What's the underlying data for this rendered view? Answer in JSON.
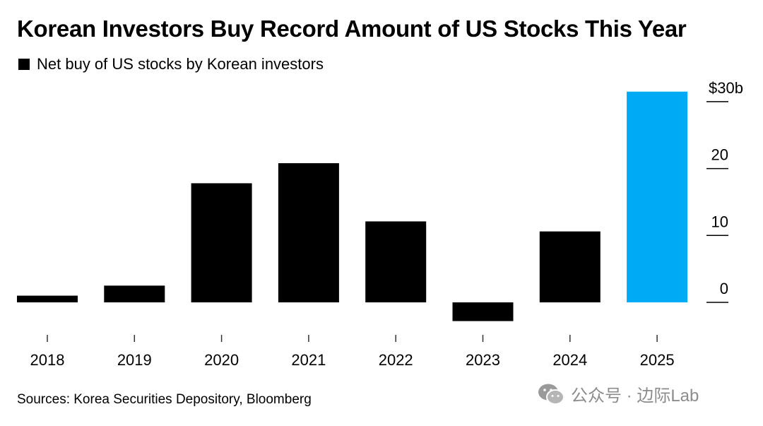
{
  "chart_data": {
    "type": "bar",
    "title": "Korean Investors Buy Record Amount of US Stocks This Year",
    "legend": {
      "label": "Net buy of US stocks by Korean investors",
      "color": "#000000",
      "placement": "top-left"
    },
    "categories": [
      "2018",
      "2019",
      "2020",
      "2021",
      "2022",
      "2023",
      "2024",
      "2025"
    ],
    "values": [
      1.0,
      2.5,
      17.8,
      20.8,
      12.1,
      -2.8,
      10.6,
      31.5
    ],
    "bar_colors": [
      "#000000",
      "#000000",
      "#000000",
      "#000000",
      "#000000",
      "#000000",
      "#000000",
      "#00aaf5"
    ],
    "yaxis": {
      "ticks": [
        0,
        10,
        20,
        30
      ],
      "tick_labels": [
        "0",
        "10",
        "20",
        "$30b"
      ],
      "position": "right"
    },
    "ylim": [
      -4,
      33
    ],
    "xlabel": "",
    "ylabel": ""
  },
  "footer": {
    "source": "Sources: Korea Securities Depository, Bloomberg"
  },
  "watermark": {
    "text": "公众号 · 边际Lab",
    "color": "#8c8c8c"
  }
}
